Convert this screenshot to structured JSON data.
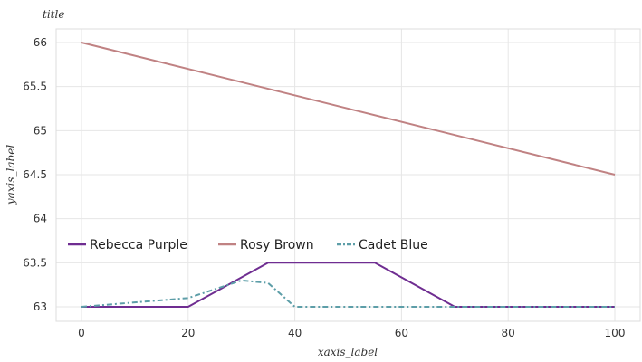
{
  "chart_data": {
    "type": "line",
    "title": "title",
    "xlabel": "xaxis_label",
    "ylabel": "yaxis_label",
    "xlim": [
      0,
      100
    ],
    "ylim": [
      63,
      66
    ],
    "x_ticks": [
      0,
      20,
      40,
      60,
      80,
      100
    ],
    "y_ticks": [
      63,
      63.5,
      64,
      64.5,
      65,
      65.5,
      66
    ],
    "x_tick_labels": [
      "0",
      "20",
      "40",
      "60",
      "80",
      "100"
    ],
    "y_tick_labels": [
      "63",
      "63.5",
      "64",
      "64.5",
      "65",
      "65.5",
      "66"
    ],
    "grid": true,
    "legend_position": "middle",
    "series": [
      {
        "name": "Rebecca Purple",
        "color": "#6f2d91",
        "style": "solid",
        "x": [
          0,
          20,
          35,
          45,
          55,
          70,
          100
        ],
        "y": [
          63,
          63,
          63.5,
          63.5,
          63.5,
          63,
          63
        ]
      },
      {
        "name": "Rosy Brown",
        "color": "#c08283",
        "style": "solid",
        "x": [
          0,
          100
        ],
        "y": [
          66,
          64.5
        ]
      },
      {
        "name": "Cadet Blue",
        "color": "#5d9ea8",
        "style": "dashdot",
        "x": [
          0,
          20,
          30,
          35,
          40,
          50,
          100
        ],
        "y": [
          63,
          63.1,
          63.3,
          63.27,
          63,
          63,
          63
        ]
      }
    ]
  }
}
